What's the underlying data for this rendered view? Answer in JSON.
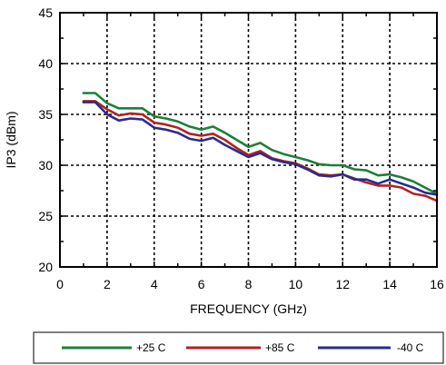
{
  "chart_data": {
    "type": "line",
    "title": "",
    "xlabel": "FREQUENCY (GHz)",
    "ylabel": "IP3 (dBm)",
    "xlim": [
      0,
      16
    ],
    "ylim": [
      20,
      45
    ],
    "xticks": [
      "0",
      "2",
      "4",
      "6",
      "8",
      "10",
      "12",
      "14",
      "16"
    ],
    "yticks": [
      "20",
      "25",
      "30",
      "35",
      "40",
      "45"
    ],
    "grid": "dashed",
    "legend_position": "bottom",
    "x": [
      1.0,
      1.5,
      2.0,
      2.5,
      3.0,
      3.5,
      4.0,
      4.5,
      5.0,
      5.5,
      6.0,
      6.5,
      7.0,
      7.5,
      8.0,
      8.5,
      9.0,
      9.5,
      10.0,
      10.5,
      11.0,
      11.5,
      12.0,
      12.5,
      13.0,
      13.5,
      14.0,
      14.5,
      15.0,
      15.5,
      16.0
    ],
    "series": [
      {
        "name": "+25 C",
        "color": "#1e7f3a",
        "values": [
          37.1,
          37.1,
          36.1,
          35.6,
          35.6,
          35.6,
          34.8,
          34.6,
          34.3,
          33.8,
          33.5,
          33.8,
          33.2,
          32.5,
          31.8,
          32.2,
          31.5,
          31.1,
          30.8,
          30.5,
          30.1,
          30.0,
          30.0,
          29.6,
          29.5,
          29.0,
          29.1,
          28.8,
          28.4,
          27.8,
          27.2
        ]
      },
      {
        "name": "+85 C",
        "color": "#b22222",
        "values": [
          36.3,
          36.3,
          35.5,
          34.9,
          35.1,
          35.0,
          34.2,
          34.0,
          33.7,
          33.1,
          32.9,
          33.1,
          32.5,
          31.7,
          31.0,
          31.4,
          30.7,
          30.4,
          30.2,
          29.7,
          29.1,
          29.0,
          29.1,
          28.7,
          28.3,
          28.0,
          28.0,
          27.8,
          27.2,
          27.0,
          26.5
        ]
      },
      {
        "name": "-40 C",
        "color": "#2b2b8c",
        "values": [
          36.2,
          36.2,
          35.0,
          34.4,
          34.6,
          34.5,
          33.7,
          33.5,
          33.2,
          32.6,
          32.4,
          32.7,
          32.0,
          31.4,
          30.8,
          31.2,
          30.6,
          30.3,
          30.1,
          29.6,
          29.0,
          28.9,
          29.1,
          28.6,
          28.6,
          28.2,
          28.6,
          28.2,
          27.8,
          27.3,
          27.1
        ]
      }
    ]
  }
}
